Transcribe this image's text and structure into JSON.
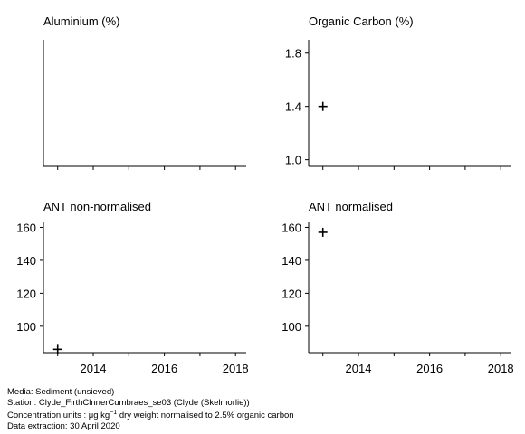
{
  "chart_data": [
    {
      "type": "scatter",
      "title": "Aluminium (%)",
      "xlim": [
        2012.6,
        2018.3
      ],
      "ylim": null,
      "yticks": [],
      "xticks": [],
      "points": []
    },
    {
      "type": "scatter",
      "title": "Organic Carbon (%)",
      "xlim": [
        2012.6,
        2018.3
      ],
      "ylim": [
        0.95,
        1.9
      ],
      "yticks": [
        "1.0",
        "1.4",
        "1.8"
      ],
      "xticks": [],
      "points": [
        {
          "x": 2013,
          "y": 1.4
        }
      ]
    },
    {
      "type": "scatter",
      "title": "ANT non-normalised",
      "xlim": [
        2012.6,
        2018.3
      ],
      "ylim": [
        84,
        163
      ],
      "yticks": [
        "100",
        "120",
        "140",
        "160"
      ],
      "xticks": [
        "2014",
        "2016",
        "2018"
      ],
      "points": [
        {
          "x": 2013,
          "y": 86
        }
      ]
    },
    {
      "type": "scatter",
      "title": "ANT normalised",
      "xlim": [
        2012.6,
        2018.3
      ],
      "ylim": [
        84,
        163
      ],
      "yticks": [
        "100",
        "120",
        "140",
        "160"
      ],
      "xticks": [
        "2014",
        "2016",
        "2018"
      ],
      "points": [
        {
          "x": 2013,
          "y": 157
        }
      ]
    }
  ],
  "footer": {
    "media": "Media: Sediment (unsieved)",
    "station": "Station: Clyde_FirthClnnerCumbraes_se03 (Clyde (Skelmorlie))",
    "units_prefix": "Concentration units : μg kg",
    "units_exp": "−1",
    "units_suffix": " dry weight normalised to 2.5% organic carbon",
    "extraction": "Data extraction: 30 April 2020"
  }
}
